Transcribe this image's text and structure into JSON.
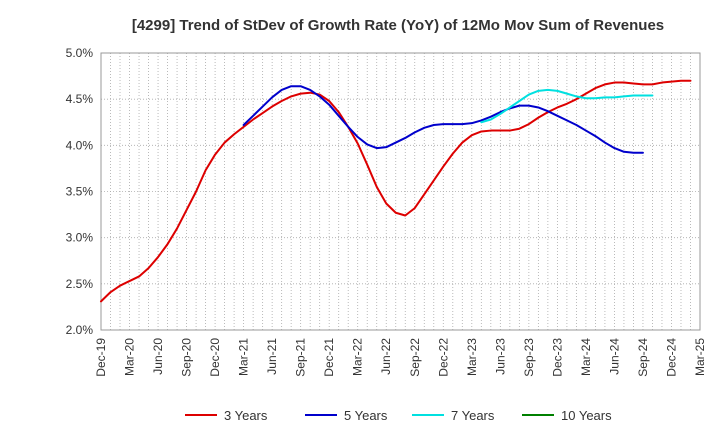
{
  "chart_data": {
    "type": "line",
    "title": "[4299]  Trend of StDev of Growth Rate (YoY) of 12Mo Mov Sum of Revenues",
    "xlabel": "",
    "ylabel": "",
    "ylim": [
      2.0,
      5.0
    ],
    "yticks": [
      "2.0%",
      "2.5%",
      "3.0%",
      "3.5%",
      "4.0%",
      "4.5%",
      "5.0%"
    ],
    "ytick_values": [
      2.0,
      2.5,
      3.0,
      3.5,
      4.0,
      4.5,
      5.0
    ],
    "x_categories": [
      "Dec-19",
      "Mar-20",
      "Jun-20",
      "Sep-20",
      "Dec-20",
      "Mar-21",
      "Jun-21",
      "Sep-21",
      "Dec-21",
      "Mar-22",
      "Jun-22",
      "Sep-22",
      "Dec-22",
      "Mar-23",
      "Jun-23",
      "Sep-23",
      "Dec-23",
      "Mar-24",
      "Jun-24",
      "Sep-24",
      "Dec-24",
      "Mar-25"
    ],
    "grid": true,
    "legend_position": "bottom",
    "series": [
      {
        "name": "3 Years",
        "color": "#dd0000",
        "start_index": 0,
        "values": [
          2.31,
          2.41,
          2.48,
          2.53,
          2.58,
          2.67,
          2.79,
          2.93,
          3.1,
          3.3,
          3.5,
          3.73,
          3.9,
          4.03,
          4.12,
          4.2,
          4.28,
          4.35,
          4.42,
          4.48,
          4.53,
          4.56,
          4.57,
          4.55,
          4.48,
          4.36,
          4.2,
          4.02,
          3.79,
          3.55,
          3.37,
          3.27,
          3.24,
          3.32,
          3.47,
          3.62,
          3.77,
          3.91,
          4.03,
          4.11,
          4.15,
          4.16,
          4.16,
          4.16,
          4.18,
          4.23,
          4.3,
          4.36,
          4.41,
          4.45,
          4.5,
          4.56,
          4.62,
          4.66,
          4.68,
          4.68,
          4.67,
          4.66,
          4.66,
          4.68,
          4.69,
          4.7,
          4.7
        ]
      },
      {
        "name": "5 Years",
        "color": "#0000cc",
        "start_index": 15,
        "values": [
          4.22,
          4.32,
          4.42,
          4.52,
          4.6,
          4.64,
          4.64,
          4.6,
          4.53,
          4.44,
          4.32,
          4.2,
          4.09,
          4.01,
          3.97,
          3.98,
          4.03,
          4.08,
          4.14,
          4.19,
          4.22,
          4.23,
          4.23,
          4.23,
          4.24,
          4.27,
          4.31,
          4.36,
          4.4,
          4.43,
          4.43,
          4.41,
          4.37,
          4.32,
          4.27,
          4.22,
          4.16,
          4.1,
          4.03,
          3.97,
          3.93,
          3.92,
          3.92
        ]
      },
      {
        "name": "7 Years",
        "color": "#00e0e0",
        "start_index": 40,
        "values": [
          4.25,
          4.28,
          4.34,
          4.41,
          4.48,
          4.55,
          4.59,
          4.6,
          4.59,
          4.56,
          4.53,
          4.51,
          4.51,
          4.52,
          4.52,
          4.53,
          4.54,
          4.54,
          4.54
        ]
      },
      {
        "name": "10 Years",
        "color": "#008000",
        "start_index": 0,
        "values": []
      }
    ]
  }
}
